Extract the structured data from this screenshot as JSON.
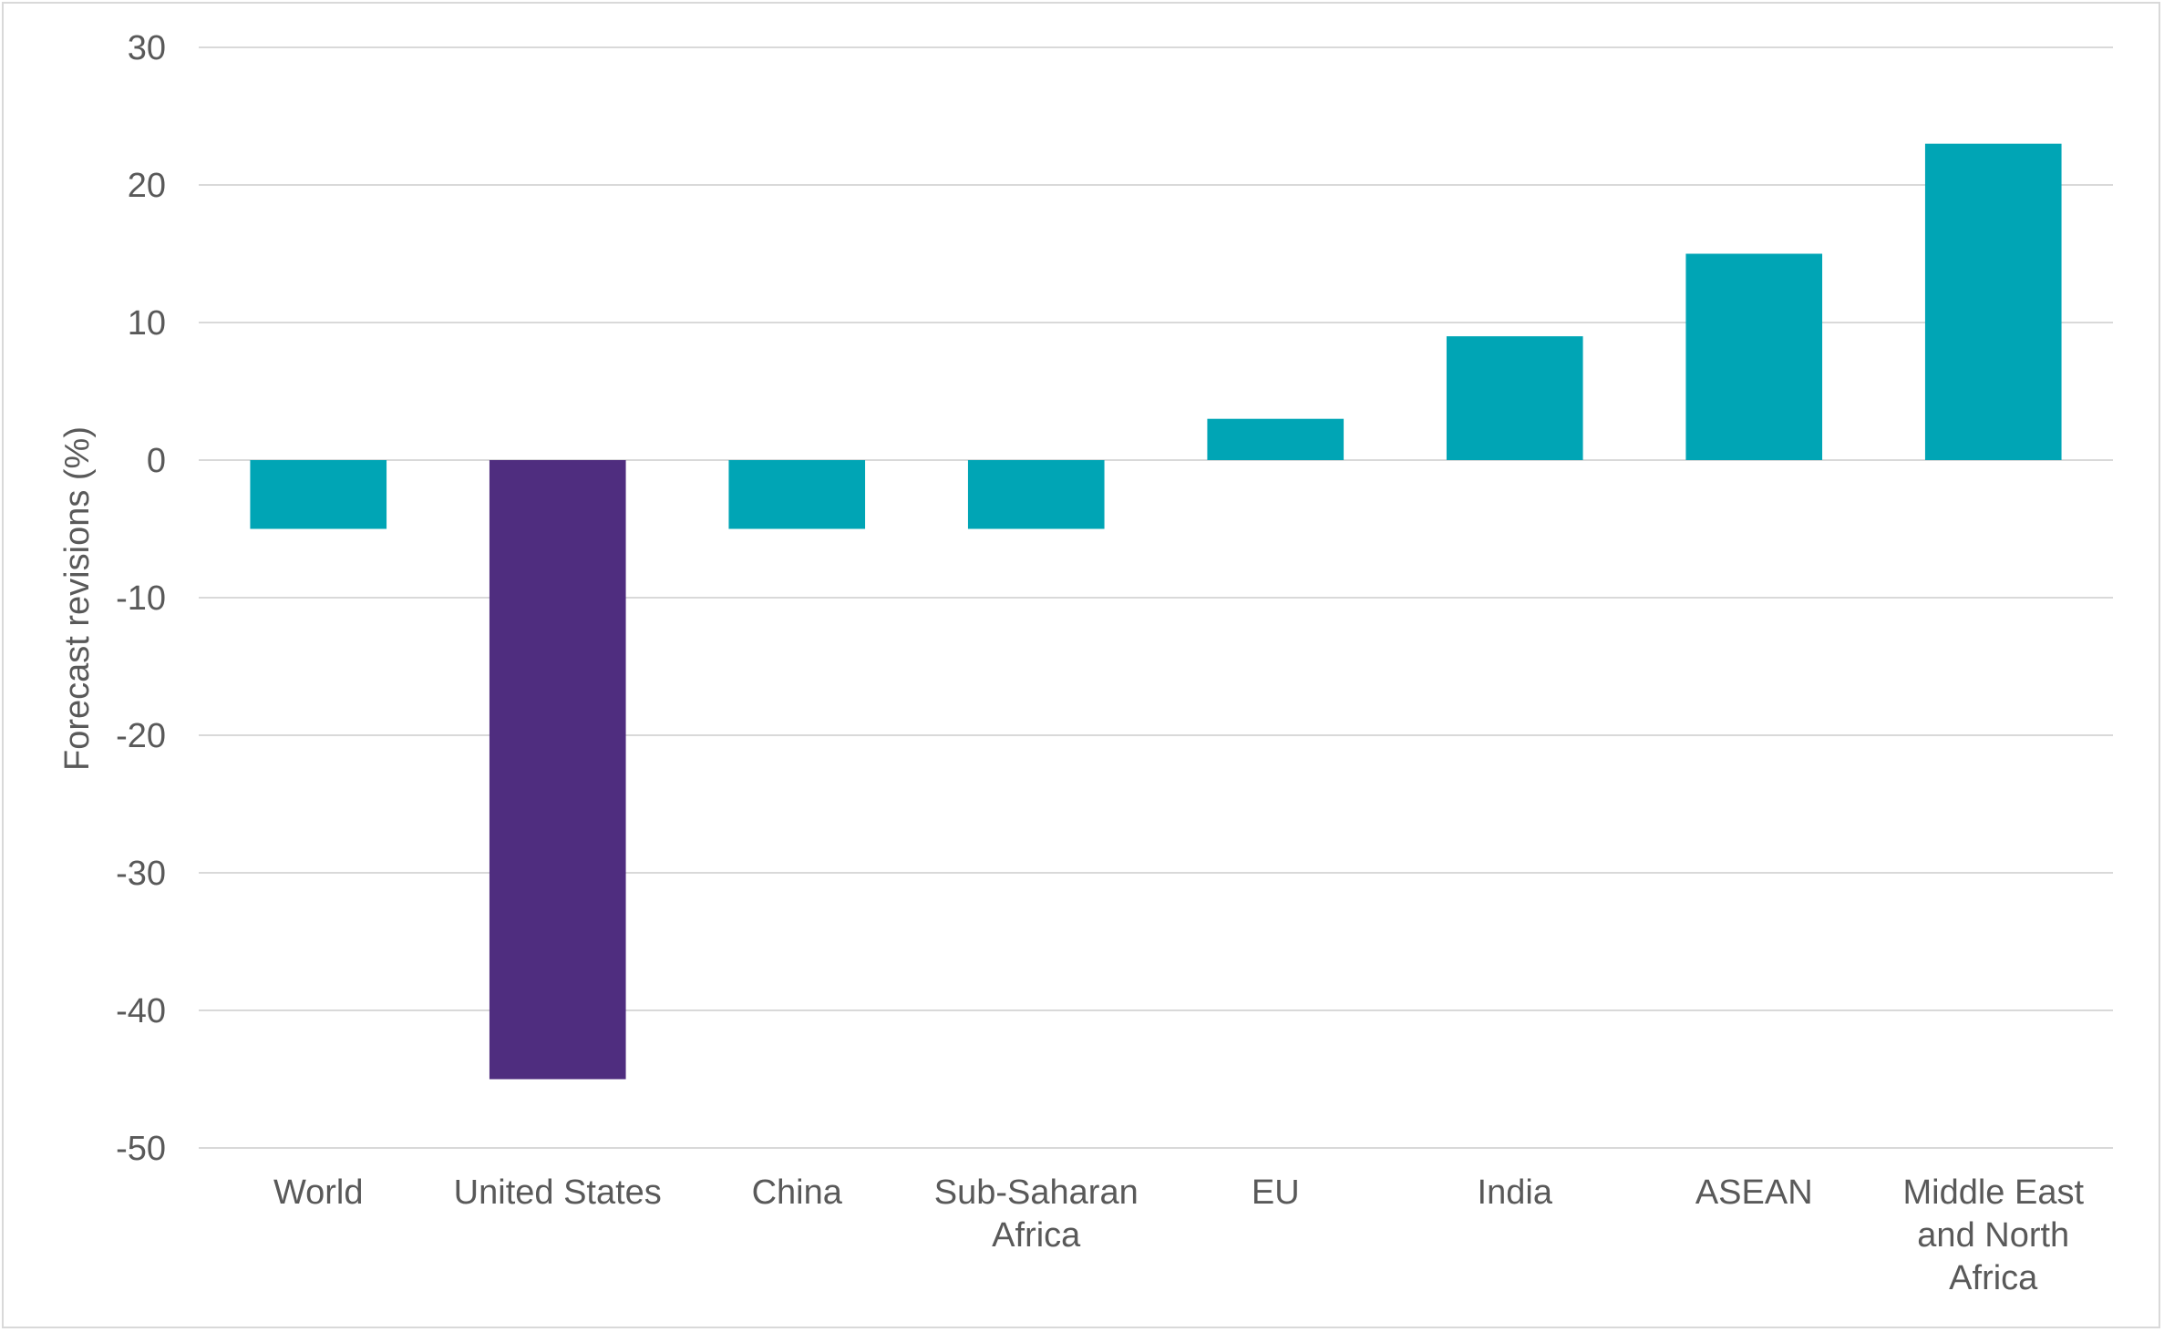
{
  "chart_data": {
    "type": "bar",
    "title": "",
    "xlabel": "",
    "ylabel": "Forecast revisions (%)",
    "ylim": [
      -50,
      30
    ],
    "yticks": [
      30,
      20,
      10,
      0,
      -10,
      -20,
      -30,
      -40,
      -50
    ],
    "grid": true,
    "legend": "none",
    "categories": [
      [
        "World"
      ],
      [
        "United States"
      ],
      [
        "China"
      ],
      [
        "Sub-Saharan",
        "Africa"
      ],
      [
        "EU"
      ],
      [
        "India"
      ],
      [
        "ASEAN"
      ],
      [
        "Middle East",
        "and North",
        "Africa"
      ]
    ],
    "values": [
      -5,
      -45,
      -5,
      -5,
      3,
      9,
      15,
      23
    ],
    "colors": [
      "#00a5b5",
      "#4f2d7f",
      "#00a5b5",
      "#00a5b5",
      "#00a5b5",
      "#00a5b5",
      "#00a5b5",
      "#00a5b5"
    ],
    "gridline_color": "#d9d9d9"
  }
}
